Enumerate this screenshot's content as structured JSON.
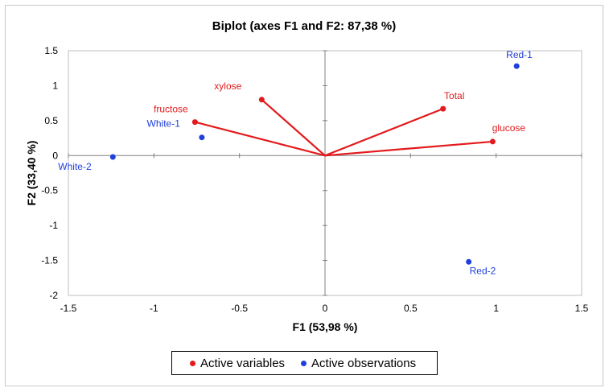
{
  "chart_data": {
    "type": "scatter",
    "title": "Biplot (axes F1 and F2: 87,38 %)",
    "xlabel": "F1 (53,98 %)",
    "ylabel": "F2 (33,40 %)",
    "xlim": [
      -1.5,
      1.5
    ],
    "ylim": [
      -2,
      1.5
    ],
    "xticks": [
      -1.5,
      -1,
      -0.5,
      0,
      0.5,
      1,
      1.5
    ],
    "yticks": [
      -2,
      -1.5,
      -1,
      -0.5,
      0,
      0.5,
      1,
      1.5
    ],
    "xtick_labels": [
      "-1.5",
      "-1",
      "-0.5",
      "0",
      "0.5",
      "1",
      "1.5"
    ],
    "ytick_labels": [
      "-2",
      "-1.5",
      "-1",
      "-0.5",
      "0",
      "0.5",
      "1",
      "1.5"
    ],
    "grid": false,
    "legend_position": "bottom",
    "series": [
      {
        "name": "Active variables",
        "color": "#e31a1c",
        "kind": "vectors",
        "points": [
          {
            "label": "fructose",
            "x": -0.76,
            "y": 0.48
          },
          {
            "label": "xylose",
            "x": -0.37,
            "y": 0.8
          },
          {
            "label": "Total",
            "x": 0.69,
            "y": 0.67
          },
          {
            "label": "glucose",
            "x": 0.98,
            "y": 0.2
          }
        ]
      },
      {
        "name": "Active observations",
        "color": "#1f3fdb",
        "kind": "points",
        "points": [
          {
            "label": "Red-1",
            "x": 1.12,
            "y": 1.28
          },
          {
            "label": "White-1",
            "x": -0.72,
            "y": 0.26
          },
          {
            "label": "White-2",
            "x": -1.24,
            "y": -0.02
          },
          {
            "label": "Red-2",
            "x": 0.84,
            "y": -1.52
          }
        ]
      }
    ]
  }
}
